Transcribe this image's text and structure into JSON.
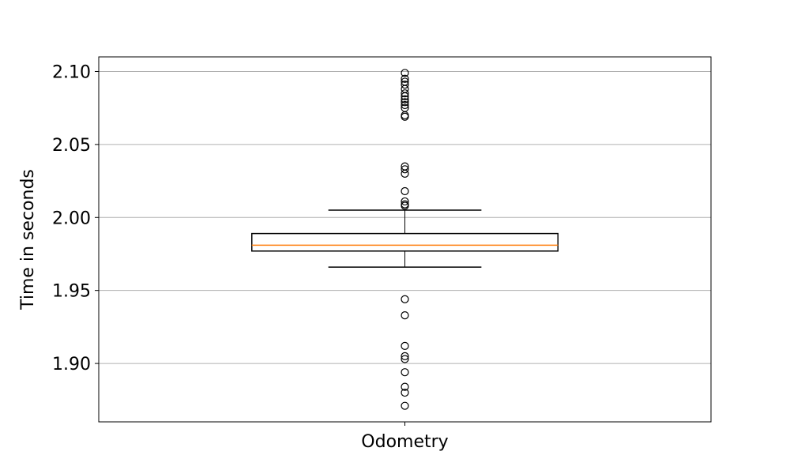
{
  "chart_data": {
    "type": "box",
    "title": "",
    "xlabel": "",
    "ylabel": "Time in seconds",
    "categories": [
      "Odometry"
    ],
    "ylim": [
      1.86,
      2.11
    ],
    "yticks": [
      "1.90",
      "1.95",
      "2.00",
      "2.05",
      "2.10"
    ],
    "grid": {
      "y": true,
      "x": false
    },
    "boxes": [
      {
        "name": "Odometry",
        "q1": 1.977,
        "median": 1.981,
        "q3": 1.989,
        "whisker_low": 1.966,
        "whisker_high": 2.005,
        "outliers": [
          2.099,
          2.095,
          2.093,
          2.091,
          2.088,
          2.085,
          2.083,
          2.081,
          2.079,
          2.077,
          2.075,
          2.07,
          2.069,
          2.035,
          2.033,
          2.03,
          2.018,
          2.011,
          2.009,
          2.008,
          1.944,
          1.933,
          1.912,
          1.905,
          1.903,
          1.894,
          1.884,
          1.88,
          1.871
        ]
      }
    ],
    "colors": {
      "box": "#000000",
      "median": "#ff7f0e",
      "grid": "#b0b0b0",
      "outlier": "#000000"
    }
  }
}
